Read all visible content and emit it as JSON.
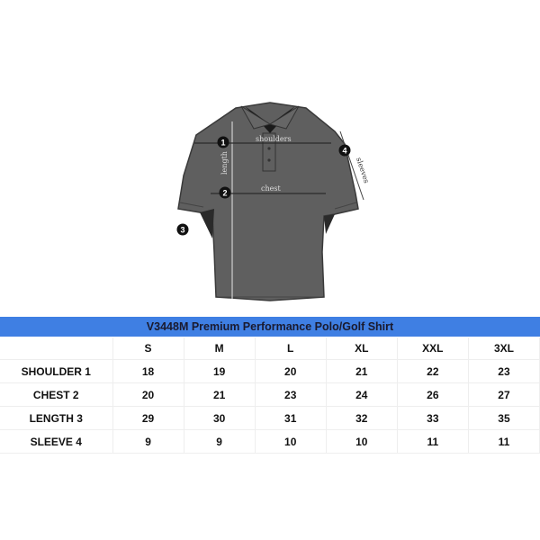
{
  "diagram": {
    "labels": {
      "shoulders": "shoulders",
      "chest": "chest",
      "length": "length",
      "sleeves": "sleeves"
    },
    "markers": [
      "1",
      "2",
      "3",
      "4"
    ],
    "shirt_color": "#5f5f5f"
  },
  "table": {
    "title": "V3448M Premium Performance Polo/Golf Shirt",
    "title_bg": "#3f7fe3",
    "sizes": [
      "S",
      "M",
      "L",
      "XL",
      "XXL",
      "3XL"
    ],
    "rows": [
      {
        "label": "SHOULDER 1",
        "values": [
          "18",
          "19",
          "20",
          "21",
          "22",
          "23"
        ]
      },
      {
        "label": "CHEST 2",
        "values": [
          "20",
          "21",
          "23",
          "24",
          "26",
          "27"
        ]
      },
      {
        "label": "LENGTH 3",
        "values": [
          "29",
          "30",
          "31",
          "32",
          "33",
          "35"
        ]
      },
      {
        "label": "SLEEVE 4",
        "values": [
          "9",
          "9",
          "10",
          "10",
          "11",
          "11"
        ]
      }
    ]
  }
}
